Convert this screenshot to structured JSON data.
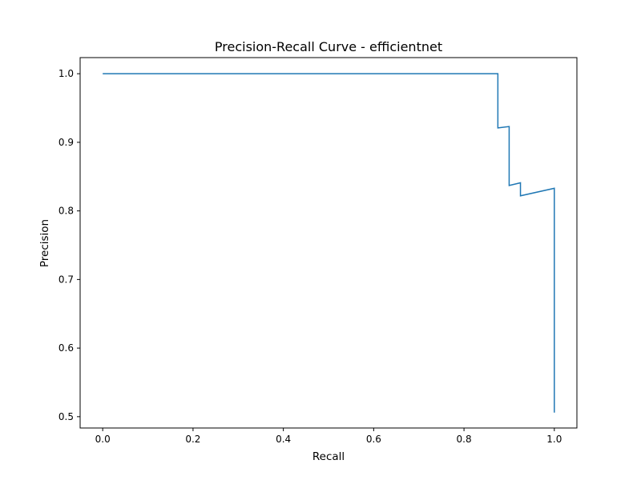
{
  "chart_data": {
    "type": "line",
    "title": "Precision-Recall Curve - efficientnet",
    "xlabel": "Recall",
    "ylabel": "Precision",
    "xlim": [
      -0.05,
      1.05
    ],
    "ylim": [
      0.4835,
      1.0235
    ],
    "xticks": [
      0.0,
      0.2,
      0.4,
      0.6,
      0.8,
      1.0
    ],
    "xtick_labels": [
      "0.0",
      "0.2",
      "0.4",
      "0.6",
      "0.8",
      "1.0"
    ],
    "yticks": [
      0.5,
      0.6,
      0.7,
      0.8,
      0.9,
      1.0
    ],
    "ytick_labels": [
      "0.5",
      "0.6",
      "0.7",
      "0.8",
      "0.9",
      "1.0"
    ],
    "grid": false,
    "line_color": "#1f77b4",
    "series": [
      {
        "x": [
          0.0,
          0.875,
          0.875,
          0.9,
          0.9,
          0.925,
          0.925,
          1.0,
          1.0
        ],
        "y": [
          1.0,
          1.0,
          0.921,
          0.923,
          0.837,
          0.841,
          0.822,
          0.833,
          0.506
        ]
      }
    ]
  }
}
